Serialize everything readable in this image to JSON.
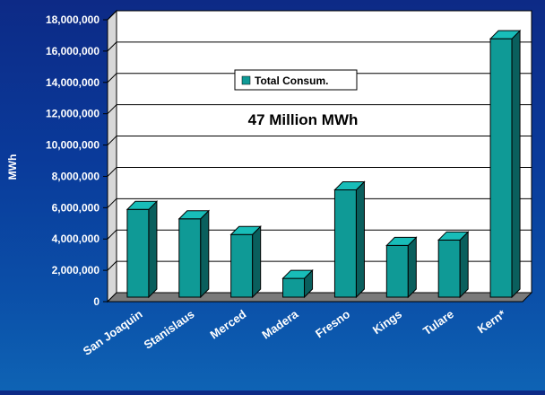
{
  "chart_data": {
    "type": "bar",
    "title": "",
    "annotation": "47 Million MWh",
    "ylabel": "MWh",
    "xlabel": "",
    "ylim": [
      0,
      18000000
    ],
    "yticks": [
      0,
      2000000,
      4000000,
      6000000,
      8000000,
      10000000,
      12000000,
      14000000,
      16000000,
      18000000
    ],
    "ytick_labels": [
      "0",
      "2,000,000",
      "4,000,000",
      "6,000,000",
      "8,000,000",
      "10,000,000",
      "12,000,000",
      "14,000,000",
      "16,000,000",
      "18,000,000"
    ],
    "grid": true,
    "legend_placement": "top-center",
    "categories": [
      "San Joaquin",
      "Stanislaus",
      "Merced",
      "Madera",
      "Fresno",
      "Kings",
      "Tulare",
      "Kern*"
    ],
    "series": [
      {
        "name": "Total Consum.",
        "values": [
          5600000,
          5000000,
          4000000,
          1200000,
          6850000,
          3300000,
          3650000,
          16500000
        ]
      }
    ],
    "colors": {
      "bar_front": "#0f9a96",
      "bar_side": "#0a5f5d",
      "bar_top": "#18bdb8",
      "plot_bg": "#ffffff",
      "floor": "#7a7a7a",
      "text": "#ffffff",
      "grid": "#000000"
    }
  }
}
